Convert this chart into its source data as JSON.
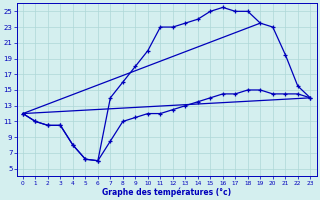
{
  "xlabel": "Graphe des températures (°c)",
  "background_color": "#d4efef",
  "grid_color": "#aed8d8",
  "line_color": "#0000bb",
  "xmin": -0.5,
  "xmax": 23.5,
  "ymin": 4,
  "ymax": 26,
  "yticks": [
    5,
    7,
    9,
    11,
    13,
    15,
    17,
    19,
    21,
    23,
    25
  ],
  "xticks": [
    0,
    1,
    2,
    3,
    4,
    5,
    6,
    7,
    8,
    9,
    10,
    11,
    12,
    13,
    14,
    15,
    16,
    17,
    18,
    19,
    20,
    21,
    22,
    23
  ],
  "curve1_x": [
    0,
    1,
    2,
    3,
    4,
    5,
    6,
    7,
    8,
    9,
    10,
    11,
    12,
    13,
    14,
    15,
    16,
    17,
    18,
    19,
    20,
    21,
    22,
    23
  ],
  "curve1_y": [
    12,
    11,
    10.5,
    10.5,
    8,
    6.2,
    6.0,
    8.5,
    11.0,
    11.5,
    12.0,
    12.0,
    12.5,
    13.0,
    13.5,
    14.0,
    14.5,
    14.5,
    15.0,
    15.0,
    14.5,
    14.5,
    14.5,
    14.0
  ],
  "curve2_x": [
    0,
    1,
    2,
    3,
    4,
    5,
    6,
    7,
    8,
    9,
    10,
    11,
    12,
    13,
    14,
    15,
    16,
    17,
    18,
    19,
    20,
    21,
    22,
    23
  ],
  "curve2_y": [
    12,
    11,
    10.5,
    10.5,
    8,
    6.2,
    6.0,
    14.0,
    16.0,
    18.0,
    20.0,
    23.0,
    23.0,
    23.5,
    24.0,
    25.0,
    25.5,
    25.0,
    25.0,
    23.5,
    23.0,
    19.5,
    15.5,
    14.0
  ],
  "line3_x": [
    0,
    23
  ],
  "line3_y": [
    12,
    14.0
  ],
  "line4_x": [
    0,
    19
  ],
  "line4_y": [
    12,
    23.5
  ]
}
